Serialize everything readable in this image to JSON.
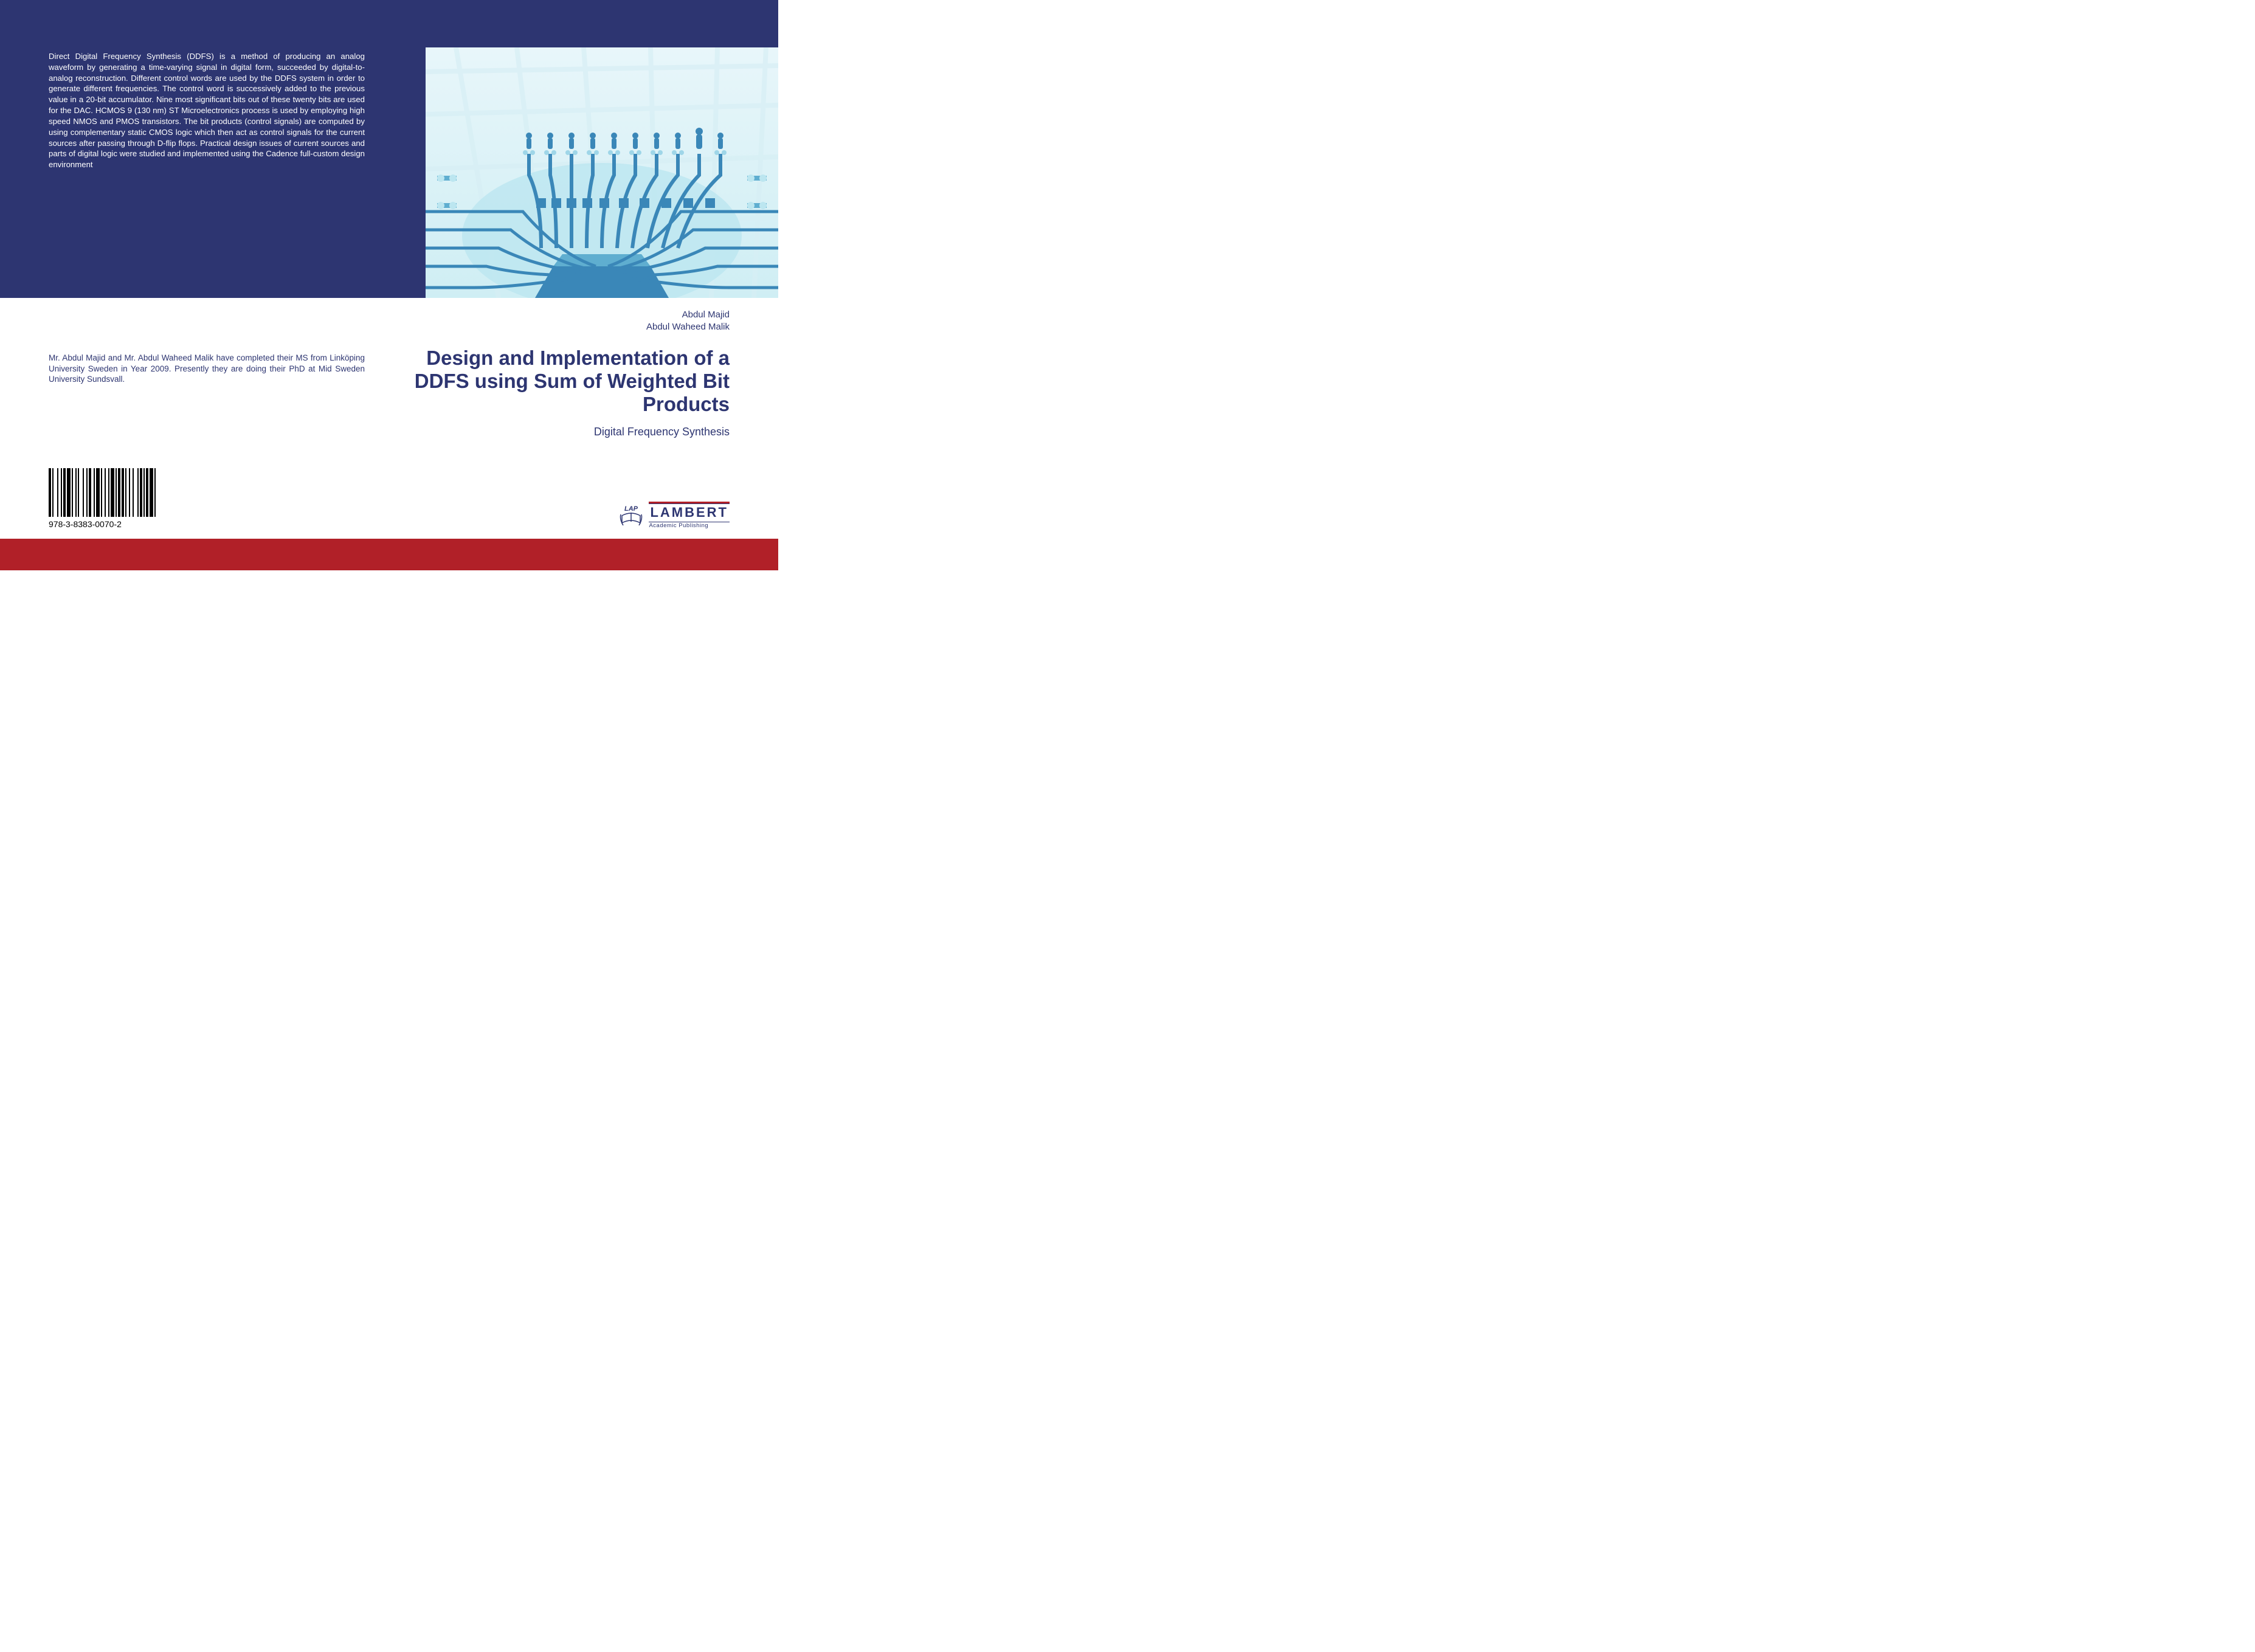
{
  "colors": {
    "navy": "#2d3571",
    "red": "#b12028",
    "white": "#ffffff",
    "art_bg_top": "#e8f6fa",
    "art_bg_bottom": "#cfeef4",
    "art_light": "#9fd6e8",
    "art_mid": "#5faed0",
    "art_dark": "#3a87b8"
  },
  "abstract": "Direct Digital Frequency Synthesis (DDFS) is a method of producing an analog waveform by generating a time-varying signal in digital form, succeeded by digital-to-analog reconstruction. Different control words are used by the DDFS system in order to generate different frequencies. The control word is successively added to the previous value in a 20-bit accumulator. Nine most significant bits out of these twenty bits are used for the DAC. HCMOS 9 (130 nm) ST Microelectronics process is used by employing high speed NMOS and PMOS transistors. The bit products (control signals) are computed by using complementary static CMOS logic which then act as control signals for the current sources after passing through D-flip flops. Practical design issues of current sources and parts of digital logic were studied and implemented using the Cadence full-custom design environment",
  "author_bio": "Mr. Abdul Majid and Mr. Abdul Waheed Malik have completed their MS from Linköping University Sweden in Year 2009. Presently they are doing their PhD at Mid Sweden University Sundsvall.",
  "authors": {
    "line1": "Abdul Majid",
    "line2": "Abdul Waheed Malik"
  },
  "title": "Design and Implementation of a DDFS using Sum of Weighted Bit Products",
  "subtitle": "Digital Frequency Synthesis",
  "isbn": "978-3-8383-0070-2",
  "publisher": {
    "tag": "LAP",
    "name": "LAMBERT",
    "sub": "Academic Publishing"
  },
  "barcode_widths": [
    2,
    1,
    1,
    3,
    1,
    2,
    1,
    1,
    2,
    1,
    3,
    1,
    1,
    2,
    1,
    1,
    1,
    3,
    1,
    2,
    1,
    1,
    2,
    2,
    1,
    1,
    3,
    1,
    1,
    2,
    1,
    2,
    1,
    1,
    3,
    1,
    1,
    1,
    2,
    1,
    2,
    1,
    1,
    2,
    1,
    2,
    1,
    3,
    1,
    1,
    2,
    1,
    1,
    1,
    2,
    1,
    3,
    1,
    1,
    2
  ],
  "art": {
    "type": "infographic",
    "description": "stylized circuit-board stadium with pin connectors and figures",
    "pin_count": 12,
    "figure_count": 10,
    "stroke_widths": [
      3,
      4,
      5
    ],
    "grid_color": "#d7eff5"
  }
}
